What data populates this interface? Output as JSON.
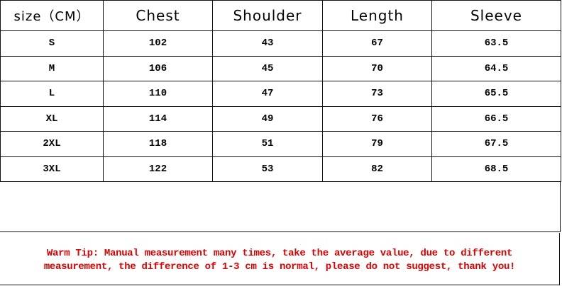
{
  "headers": [
    "size（CM）",
    "Chest",
    "Shoulder",
    "Length",
    "Sleeve"
  ],
  "rows": [
    [
      "S",
      "102",
      "43",
      "67",
      "63.5"
    ],
    [
      "M",
      "106",
      "45",
      "70",
      "64.5"
    ],
    [
      "L",
      "110",
      "47",
      "73",
      "65.5"
    ],
    [
      "XL",
      "114",
      "49",
      "76",
      "66.5"
    ],
    [
      "2XL",
      "118",
      "51",
      "79",
      "67.5"
    ],
    [
      "3XL",
      "122",
      "53",
      "82",
      "68.5"
    ]
  ],
  "tip": {
    "line1": "Warm Tip: Manual measurement many times, take the average value, due to different",
    "line2": "measurement, the difference of 1-3 cm is normal, please do not suggest, thank you!",
    "color": "#e00000"
  }
}
